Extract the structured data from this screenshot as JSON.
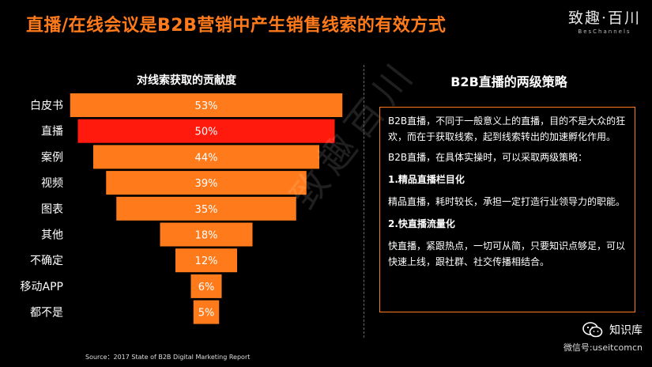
{
  "title": "直播/在线会议是B2B营销中产生销售线索的有效方式",
  "brand": {
    "name": "致趣·百川",
    "sub": "BesChannels"
  },
  "watermark": "致趣百川",
  "chart_data": {
    "type": "bar",
    "title": "对线索获取的贡献度",
    "categories": [
      "白皮书",
      "直播",
      "案例",
      "视频",
      "图表",
      "其他",
      "不确定",
      "移动APP",
      "都不是"
    ],
    "values": [
      53,
      50,
      44,
      39,
      35,
      18,
      12,
      6,
      5
    ],
    "value_labels": [
      "53%",
      "50%",
      "44%",
      "39%",
      "35%",
      "18%",
      "12%",
      "6%",
      "5%"
    ],
    "unit": "%",
    "highlight_category": "直播",
    "colors": {
      "bar": "#ff7a1a",
      "highlight": "#ff1a0d"
    },
    "source": "Source：2017 State of B2B Digital Marketing Report"
  },
  "strategy": {
    "title": "B2B直播的两级策略",
    "p1": "B2B直播，不同于一般意义上的直播，目的不是大众的狂欢，而在于获取线索，起到线索转出的加速孵化作用。",
    "p2": "B2B直播，在具体实操时，可以采取两级策略：",
    "h1": "1.精品直播栏目化",
    "p3": "精品直播，耗时较长，承担一定打造行业领导力的职能。",
    "h2": "2.快直播流量化",
    "p4": "快直播，紧跟热点，一切可从简，只要知识点够足，可以快速上线，跟社群、社交传播相结合。"
  },
  "footer": {
    "icon": "wechat-icon",
    "name": "知识库",
    "sub": "微信号:useitcomcn"
  },
  "colors": {
    "title": "#ff7a1a",
    "box_border": "#ff7a1a",
    "background": "#000000"
  }
}
